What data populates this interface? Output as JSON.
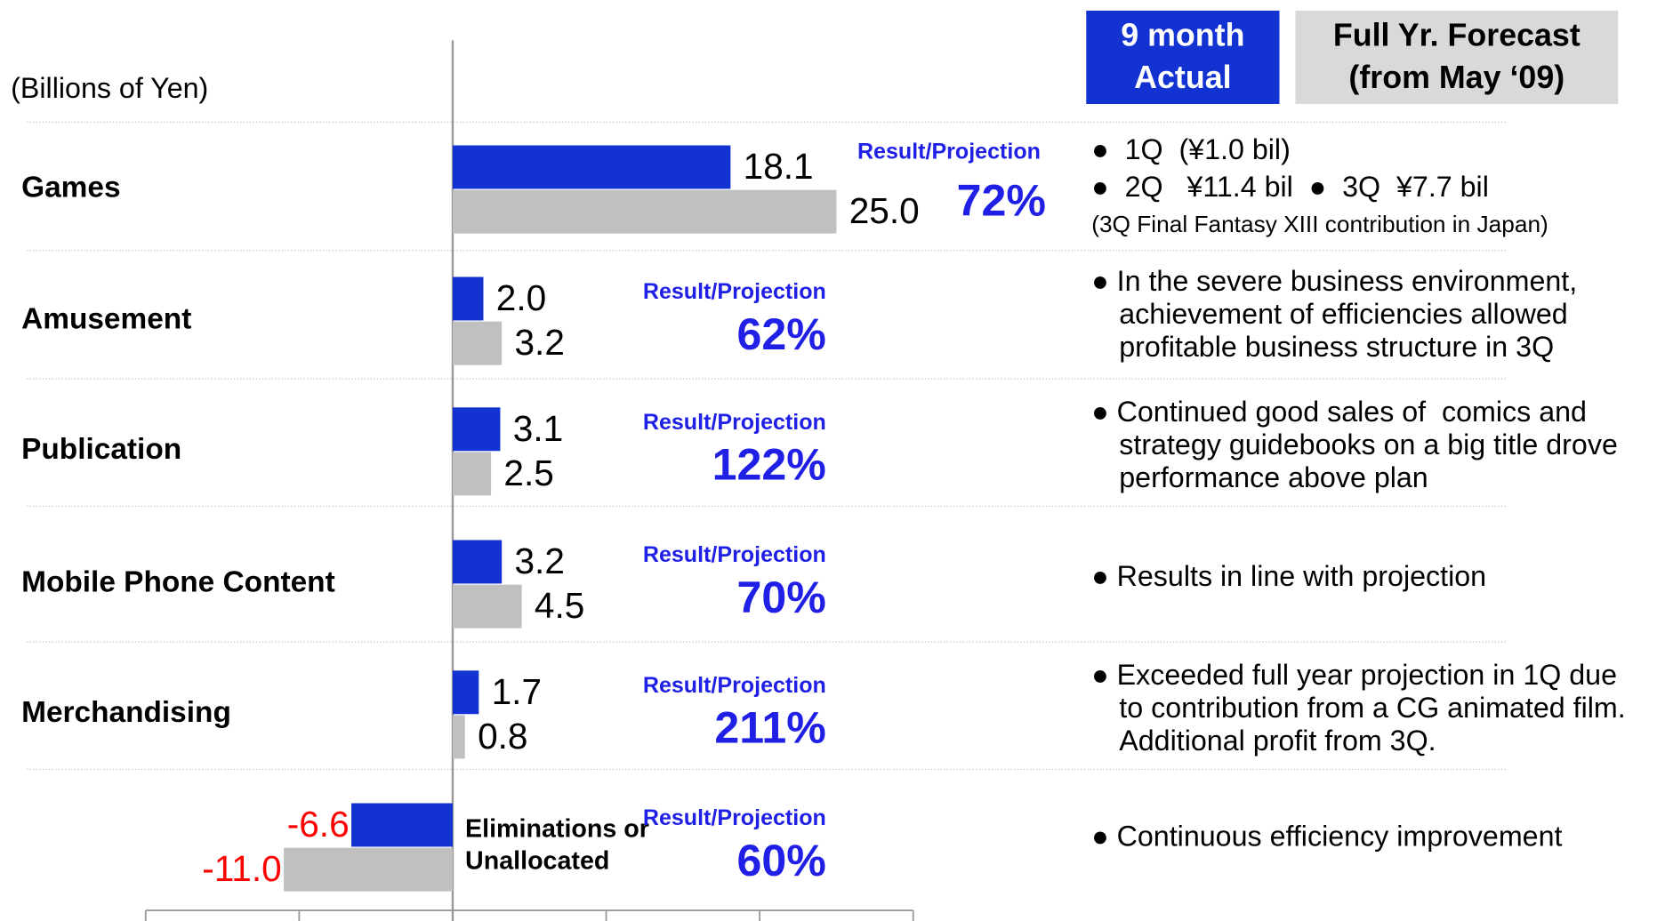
{
  "chart_data": {
    "type": "bar",
    "orientation": "horizontal",
    "subtitle": "(Billions of Yen)",
    "categories": [
      "Games",
      "Amusement",
      "Publication",
      "Mobile Phone Content",
      "Merchandising",
      "Eliminations or Unallocated"
    ],
    "series": [
      {
        "name": "9 month Actual",
        "color": "#1232d2",
        "values": [
          18.1,
          2.0,
          3.1,
          3.2,
          1.7,
          -6.6
        ],
        "value_labels": [
          "18.1",
          "2.0",
          "3.1",
          "3.2",
          "1.7",
          "-6.6"
        ]
      },
      {
        "name": "Full Yr. Forecast (from May ‘09)",
        "color": "#c0c0c0",
        "values": [
          25.0,
          3.2,
          2.5,
          4.5,
          0.8,
          -11.0
        ],
        "value_labels": [
          "25.0",
          "3.2",
          "2.5",
          "4.5",
          "0.8",
          "-11.0"
        ]
      }
    ],
    "xlim": [
      -20,
      30
    ],
    "xticks": [
      -20,
      -10,
      0,
      10,
      20,
      30
    ],
    "ratio_title": "Result/Projection",
    "ratio_labels": [
      "72%",
      "62%",
      "122%",
      "70%",
      "211%",
      "60%"
    ],
    "notes": [
      [
        "●  1Q  (¥1.0 bil)",
        "●  2Q   ¥11.4 bil  ●  3Q  ¥7.7 bil",
        "(3Q Final Fantasy XIII contribution in Japan)"
      ],
      [
        "● In the severe business environment,",
        "achievement of efficiencies allowed",
        "profitable business structure in 3Q"
      ],
      [
        "● Continued good sales of  comics and",
        "strategy guidebooks on a big title drove",
        "performance above plan"
      ],
      [
        "● Results in line with projection"
      ],
      [
        "● Exceeded full year projection in 1Q due",
        "to contribution from a CG animated film.",
        "Additional profit from 3Q."
      ],
      [
        "● Continuous efficiency improvement"
      ]
    ]
  }
}
